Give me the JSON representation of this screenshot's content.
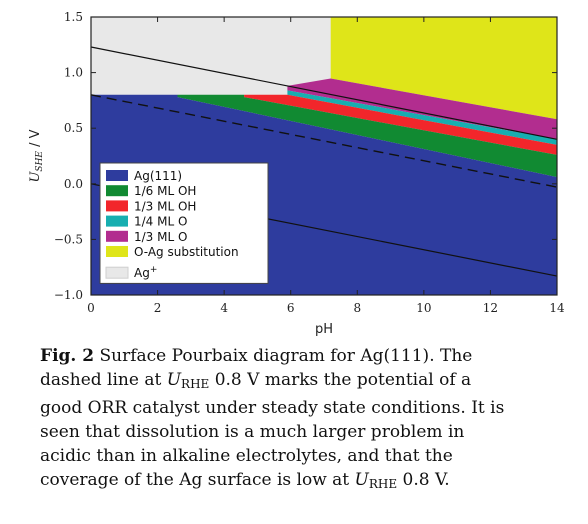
{
  "chart_data": {
    "type": "area",
    "xlabel": "pH",
    "ylabel": "U_SHE / V",
    "xlim": [
      0,
      14
    ],
    "ylim": [
      -1.0,
      1.5
    ],
    "x_ticks": [
      "0",
      "2",
      "4",
      "6",
      "8",
      "10",
      "12",
      "14"
    ],
    "y_ticks": [
      "1.5",
      "1.0",
      "0.5",
      "0.0",
      "−0.5",
      "−1.0"
    ],
    "regions": [
      {
        "name": "Ag(111)",
        "color": "#2e3c9e"
      },
      {
        "name": "1/6 ML OH",
        "color": "#118a32"
      },
      {
        "name": "1/3 ML OH",
        "color": "#f2262b"
      },
      {
        "name": "1/4 ML O",
        "color": "#17aeb0"
      },
      {
        "name": "1/3 ML O",
        "color": "#b22d8f"
      },
      {
        "name": "O-Ag substitution",
        "color": "#dfe519"
      },
      {
        "name": "Ag",
        "superscript": "+",
        "color": "#e8e8e8"
      }
    ],
    "boundaries": {
      "ag_top_flat": 0.8,
      "dissolution_flat_end_pH": 1.2,
      "oh16_start_pH": 2.6,
      "oh13_start_pH": 4.6,
      "o14_start_pH": 5.9,
      "oag_start_pH": 7.2,
      "right_edge": {
        "ag111": 0.06,
        "oh16": 0.26,
        "oh13": 0.35,
        "o14": 0.4,
        "o13": 0.58
      }
    },
    "lines": [
      {
        "style": "solid",
        "x": [
          0,
          14
        ],
        "y": [
          1.23,
          0.4
        ]
      },
      {
        "style": "dashed",
        "x": [
          0,
          14
        ],
        "y": [
          0.8,
          -0.03
        ]
      },
      {
        "style": "solid",
        "x": [
          0,
          14
        ],
        "y": [
          0.0,
          -0.83
        ]
      }
    ]
  },
  "caption": {
    "fig_label": "Fig. 2",
    "line1_rest": " Surface Pourbaix diagram for Ag(111). The",
    "line2_a": "dashed line at ",
    "u": "U",
    "rhe": "RHE",
    "line2_b": " 0.8 V marks the potential of a",
    "line3": "good ORR catalyst under steady state conditions. It is",
    "line4": "seen that dissolution is a much larger problem in",
    "line5": "acidic than in alkaline electrolytes, and that the",
    "line6_a": "coverage of the Ag surface is low at ",
    "line6_b": " 0.8 V."
  }
}
